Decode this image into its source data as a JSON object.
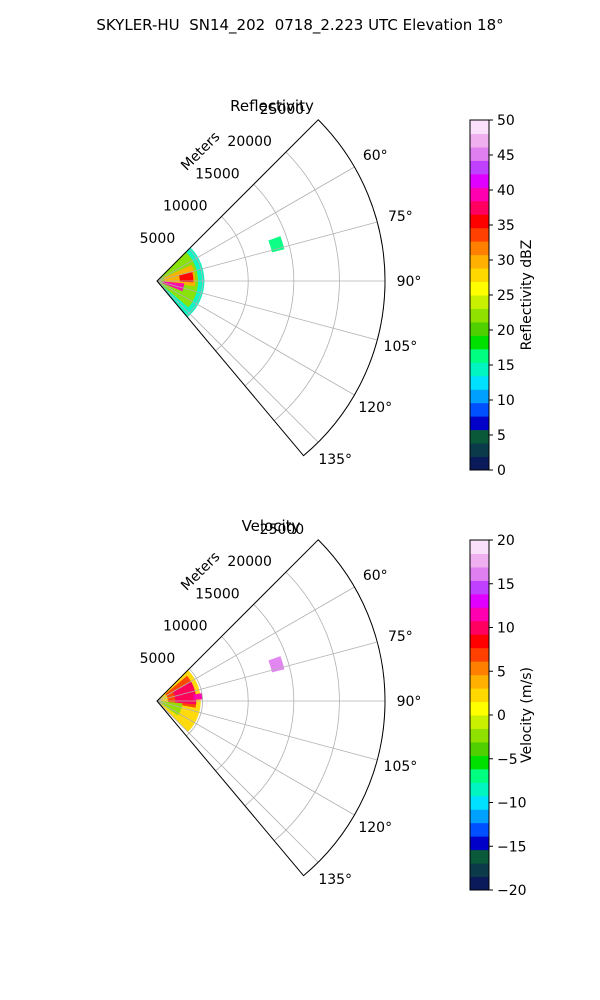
{
  "suptitle": "SKYLER-HU  SN14_202  0718_2.223 UTC Elevation 18°",
  "chart_data": [
    {
      "type": "heatmap",
      "title": "Reflectivity",
      "projection": "polar sector, azimuth clockwise from north",
      "radial_label": "Meters",
      "radial_ticks": [
        5000,
        10000,
        15000,
        20000,
        25000
      ],
      "radial_tick_labels": [
        "5000",
        "10000",
        "15000",
        "20000",
        "25000"
      ],
      "rlim": [
        0,
        25000
      ],
      "azimuth_ticks": [
        60,
        75,
        90,
        105,
        120,
        135
      ],
      "azimuth_tick_labels": [
        "60°",
        "75°",
        "90°",
        "105°",
        "120°",
        "135°"
      ],
      "azimuth_range": [
        45,
        140
      ],
      "grid": true,
      "colorbar": {
        "label": "Reflectivity dBZ",
        "range": [
          0,
          50
        ],
        "ticks": [
          0,
          5,
          10,
          15,
          20,
          25,
          30,
          35,
          40,
          45,
          50
        ],
        "tick_labels": [
          "0",
          "5",
          "10",
          "15",
          "20",
          "25",
          "30",
          "35",
          "40",
          "45",
          "50"
        ],
        "colors": [
          "#0a1a5a",
          "#0b3a4a",
          "#0a5a3a",
          "#0000c8",
          "#0050ff",
          "#00a0ff",
          "#00e0ff",
          "#00f5c0",
          "#00ff80",
          "#00e000",
          "#50d000",
          "#90e000",
          "#c8f000",
          "#ffff00",
          "#ffd800",
          "#ffb000",
          "#ff8000",
          "#ff4000",
          "#ff0000",
          "#ff0060",
          "#ff00b0",
          "#e000ff",
          "#c040ff",
          "#e080f0",
          "#f0b0f0",
          "#fae0fa"
        ]
      },
      "echo_regions": [
        {
          "az": [
            35,
            145
          ],
          "r": [
            0,
            5200
          ],
          "value": 14
        },
        {
          "az": [
            40,
            130
          ],
          "r": [
            0,
            4500
          ],
          "value": 22
        },
        {
          "az": [
            65,
            98
          ],
          "r": [
            800,
            4200
          ],
          "value": 30
        },
        {
          "az": [
            95,
            112
          ],
          "r": [
            600,
            3000
          ],
          "value": 40
        },
        {
          "az": [
            76,
            92
          ],
          "r": [
            2500,
            4000
          ],
          "value": 35
        },
        {
          "az": [
            70,
            76
          ],
          "r": [
            13000,
            14400
          ],
          "value": 17
        }
      ]
    },
    {
      "type": "heatmap",
      "title": "Velocity",
      "projection": "polar sector, azimuth clockwise from north",
      "radial_label": "Meters",
      "radial_ticks": [
        5000,
        10000,
        15000,
        20000,
        25000
      ],
      "radial_tick_labels": [
        "5000",
        "10000",
        "15000",
        "20000",
        "25000"
      ],
      "rlim": [
        0,
        25000
      ],
      "azimuth_ticks": [
        60,
        75,
        90,
        105,
        120,
        135
      ],
      "azimuth_tick_labels": [
        "60°",
        "75°",
        "90°",
        "105°",
        "120°",
        "135°"
      ],
      "azimuth_range": [
        45,
        140
      ],
      "grid": true,
      "colorbar": {
        "label": "Velocity (m/s)",
        "range": [
          -20,
          20
        ],
        "ticks": [
          -20,
          -15,
          -10,
          -5,
          0,
          5,
          10,
          15,
          20
        ],
        "tick_labels": [
          "−20",
          "−15",
          "−10",
          "−5",
          "0",
          "5",
          "10",
          "15",
          "20"
        ],
        "colors": [
          "#0a1a5a",
          "#0b3a4a",
          "#0a5a3a",
          "#0000c8",
          "#0050ff",
          "#00a0ff",
          "#00e0ff",
          "#00f5c0",
          "#00ff80",
          "#00e000",
          "#50d000",
          "#90e000",
          "#c8f000",
          "#ffff00",
          "#ffd800",
          "#ffb000",
          "#ff8000",
          "#ff4000",
          "#ff0000",
          "#ff0060",
          "#ff00b0",
          "#e000ff",
          "#c040ff",
          "#e080f0",
          "#f0b0f0",
          "#fae0fa"
        ]
      },
      "echo_regions": [
        {
          "az": [
            40,
            135
          ],
          "r": [
            0,
            4800
          ],
          "value": 2
        },
        {
          "az": [
            50,
            100
          ],
          "r": [
            1200,
            4300
          ],
          "value": 7
        },
        {
          "az": [
            60,
            95
          ],
          "r": [
            2000,
            4300
          ],
          "value": 10
        },
        {
          "az": [
            80,
            88
          ],
          "r": [
            4000,
            5000
          ],
          "value": 12
        },
        {
          "az": [
            95,
            125
          ],
          "r": [
            300,
            2800
          ],
          "value": -3
        },
        {
          "az": [
            70,
            76
          ],
          "r": [
            13000,
            14400
          ],
          "value": 16
        }
      ]
    }
  ]
}
